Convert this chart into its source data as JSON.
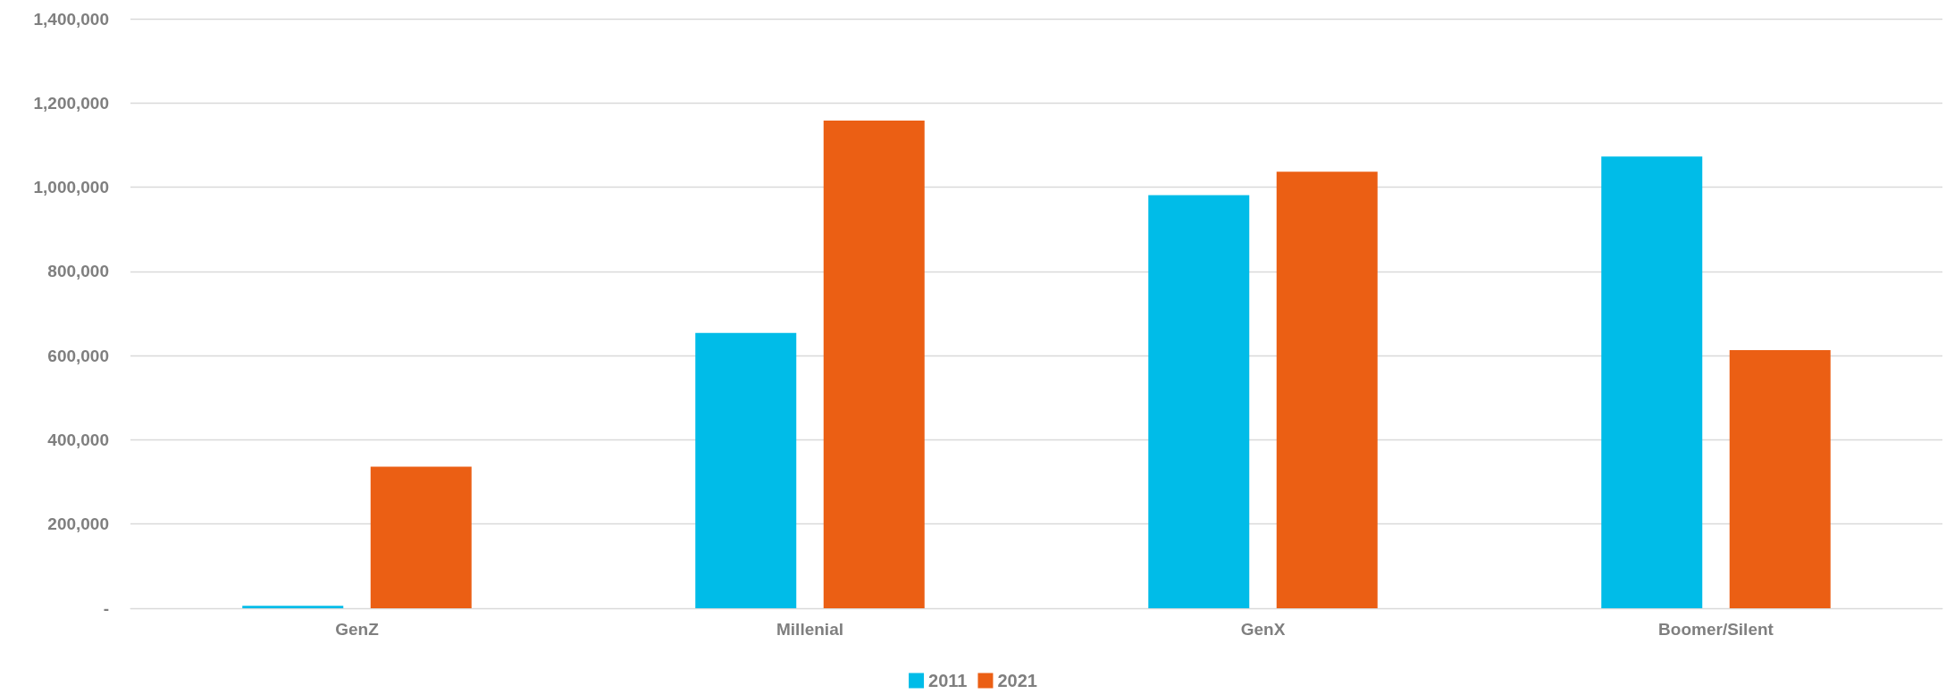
{
  "chart_data": {
    "type": "bar",
    "categories": [
      "GenZ",
      "Millenial",
      "GenX",
      "Boomer/Silent"
    ],
    "series": [
      {
        "name": "2011",
        "color": "#00bce8",
        "values": [
          6000,
          654000,
          981000,
          1073000
        ]
      },
      {
        "name": "2021",
        "color": "#eb5f14",
        "values": [
          336000,
          1158000,
          1037000,
          613000
        ]
      }
    ],
    "ylim": [
      0,
      1400000
    ],
    "yticks": [
      {
        "value": 0,
        "label": "-"
      },
      {
        "value": 200000,
        "label": "200,000"
      },
      {
        "value": 400000,
        "label": "400,000"
      },
      {
        "value": 600000,
        "label": "600,000"
      },
      {
        "value": 800000,
        "label": "800,000"
      },
      {
        "value": 1000000,
        "label": "1,000,000"
      },
      {
        "value": 1200000,
        "label": "1,200,000"
      },
      {
        "value": 1400000,
        "label": "1,400,000"
      }
    ],
    "grid": "y",
    "legend": "bottom"
  }
}
